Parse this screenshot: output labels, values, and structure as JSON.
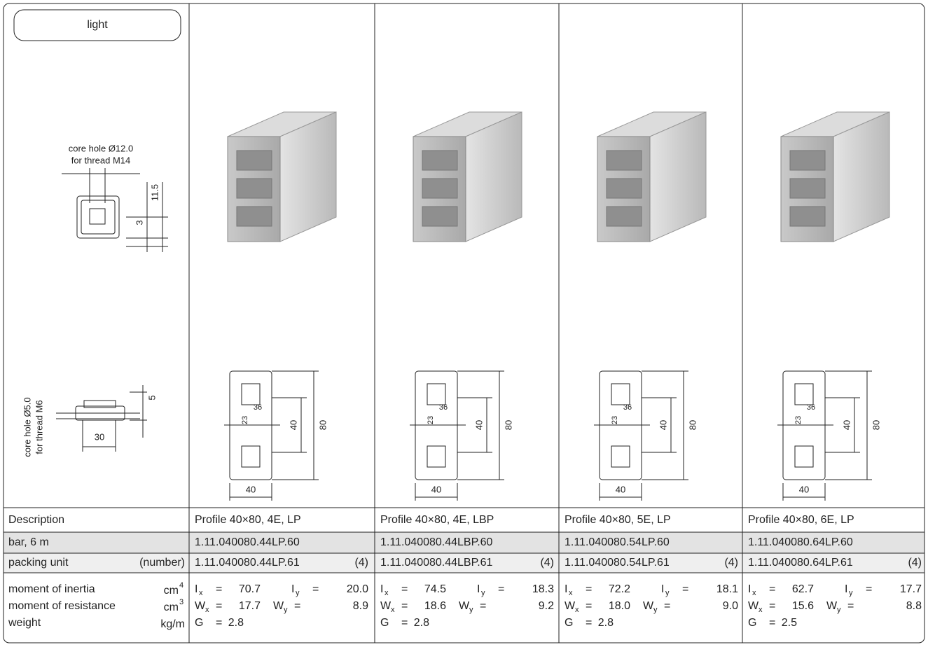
{
  "tab": "light",
  "left_drawings": {
    "top": {
      "note": [
        "core hole Ø12.0",
        "for thread M14"
      ],
      "dims": [
        "11.5",
        "3"
      ]
    },
    "bottom": {
      "note": [
        "core hole Ø5.0",
        "for thread M6"
      ],
      "dims": [
        "5",
        "30"
      ]
    }
  },
  "row_labels": {
    "description": "Description",
    "bar": "bar, 6 m",
    "packing": "packing unit",
    "packing_note": "(number)",
    "inertia": "moment of inertia",
    "inertia_unit": "cm",
    "inertia_exp": "4",
    "resistance": "moment of resistance",
    "resistance_unit": "cm",
    "resistance_exp": "3",
    "weight": "weight",
    "weight_unit": "kg/m"
  },
  "symbols": {
    "i": "I",
    "w": "W",
    "x": "x",
    "y": "y",
    "g": "G",
    "eq": "="
  },
  "profiles": [
    {
      "description": "Profile 40×80, 4E, LP",
      "bar": "1.11.040080.44LP.60",
      "packing": "1.11.040080.44LP.61",
      "packing_qty": "(4)",
      "ix": "70.7",
      "iy": "20.0",
      "wx": "17.7",
      "wy": "8.9",
      "g": "2.8",
      "dims": {
        "width": "40",
        "height_small": "40",
        "height": "80",
        "slot": "36",
        "offset": "23"
      }
    },
    {
      "description": "Profile 40×80, 4E, LBP",
      "bar": "1.11.040080.44LBP.60",
      "packing": "1.11.040080.44LBP.61",
      "packing_qty": "(4)",
      "ix": "74.5",
      "iy": "18.3",
      "wx": "18.6",
      "wy": "9.2",
      "g": "2.8",
      "dims": {
        "width": "40",
        "height_small": "40",
        "height": "80",
        "slot": "36",
        "offset": "23"
      }
    },
    {
      "description": "Profile 40×80, 5E, LP",
      "bar": "1.11.040080.54LP.60",
      "packing": "1.11.040080.54LP.61",
      "packing_qty": "(4)",
      "ix": "72.2",
      "iy": "18.1",
      "wx": "18.0",
      "wy": "9.0",
      "g": "2.8",
      "dims": {
        "width": "40",
        "height_small": "40",
        "height": "80",
        "slot": "36",
        "offset": "23"
      }
    },
    {
      "description": "Profile 40×80, 6E, LP",
      "bar": "1.11.040080.64LP.60",
      "packing": "1.11.040080.64LP.61",
      "packing_qty": "(4)",
      "ix": "62.7",
      "iy": "17.7",
      "wx": "15.6",
      "wy": "8.8",
      "g": "2.5",
      "dims": {
        "width": "40",
        "height_small": "40",
        "height": "80",
        "slot": "36",
        "offset": "23"
      }
    }
  ]
}
